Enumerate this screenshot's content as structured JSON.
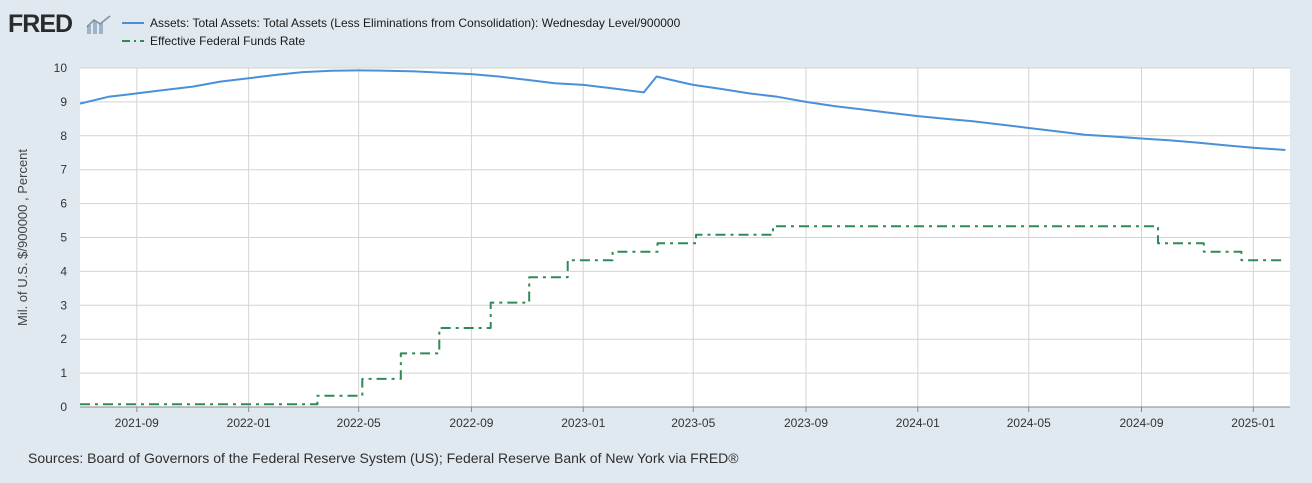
{
  "header": {
    "logo_text": "FRED"
  },
  "legend": [
    {
      "label": "Assets: Total Assets: Total Assets (Less Eliminations from Consolidation): Wednesday Level/900000",
      "color": "#4a90d9",
      "style": "solid"
    },
    {
      "label": "Effective Federal Funds Rate",
      "color": "#2e8b57",
      "style": "dash-dot"
    }
  ],
  "footer": {
    "sources": "Sources: Board of Governors of the Federal Reserve System (US); Federal Reserve Bank of New York via FRED®"
  },
  "chart_data": {
    "type": "line",
    "ylabel": "Mil. of U.S. $/900000 , Percent",
    "ylim": [
      0,
      10
    ],
    "yticks": [
      0,
      1,
      2,
      3,
      4,
      5,
      6,
      7,
      8,
      9,
      10
    ],
    "xlim": [
      "2021-07-01",
      "2025-02-10"
    ],
    "xticks": [
      "2021-09",
      "2022-01",
      "2022-05",
      "2022-09",
      "2023-01",
      "2023-05",
      "2023-09",
      "2024-01",
      "2024-05",
      "2024-09",
      "2025-01"
    ],
    "grid": true,
    "legend_position": "top-left",
    "series": [
      {
        "name": "Assets: Total Assets: Total Assets (Less Eliminations from Consolidation): Wednesday Level/900000",
        "color": "#4a90d9",
        "points": [
          [
            "2021-07-01",
            8.95
          ],
          [
            "2021-08-01",
            9.15
          ],
          [
            "2021-09-01",
            9.25
          ],
          [
            "2021-10-01",
            9.35
          ],
          [
            "2021-11-01",
            9.45
          ],
          [
            "2021-12-01",
            9.6
          ],
          [
            "2022-01-01",
            9.7
          ],
          [
            "2022-02-01",
            9.8
          ],
          [
            "2022-03-01",
            9.88
          ],
          [
            "2022-04-01",
            9.92
          ],
          [
            "2022-05-01",
            9.93
          ],
          [
            "2022-06-01",
            9.92
          ],
          [
            "2022-07-01",
            9.9
          ],
          [
            "2022-08-01",
            9.86
          ],
          [
            "2022-09-01",
            9.82
          ],
          [
            "2022-10-01",
            9.75
          ],
          [
            "2022-11-01",
            9.65
          ],
          [
            "2022-12-01",
            9.55
          ],
          [
            "2023-01-01",
            9.5
          ],
          [
            "2023-02-01",
            9.4
          ],
          [
            "2023-03-08",
            9.28
          ],
          [
            "2023-03-22",
            9.75
          ],
          [
            "2023-04-15",
            9.6
          ],
          [
            "2023-05-01",
            9.5
          ],
          [
            "2023-06-01",
            9.38
          ],
          [
            "2023-07-01",
            9.25
          ],
          [
            "2023-08-01",
            9.15
          ],
          [
            "2023-09-01",
            9.0
          ],
          [
            "2023-10-01",
            8.88
          ],
          [
            "2023-11-01",
            8.78
          ],
          [
            "2023-12-01",
            8.68
          ],
          [
            "2024-01-01",
            8.58
          ],
          [
            "2024-02-01",
            8.5
          ],
          [
            "2024-03-01",
            8.43
          ],
          [
            "2024-04-01",
            8.33
          ],
          [
            "2024-05-01",
            8.23
          ],
          [
            "2024-06-01",
            8.13
          ],
          [
            "2024-07-01",
            8.03
          ],
          [
            "2024-08-01",
            7.98
          ],
          [
            "2024-09-01",
            7.92
          ],
          [
            "2024-10-01",
            7.87
          ],
          [
            "2024-11-01",
            7.8
          ],
          [
            "2024-12-01",
            7.72
          ],
          [
            "2025-01-01",
            7.65
          ],
          [
            "2025-02-05",
            7.58
          ]
        ]
      },
      {
        "name": "Effective Federal Funds Rate",
        "color": "#2e8b57",
        "points": [
          [
            "2021-07-01",
            0.08
          ],
          [
            "2022-03-17",
            0.08
          ],
          [
            "2022-03-17",
            0.33
          ],
          [
            "2022-05-05",
            0.33
          ],
          [
            "2022-05-05",
            0.83
          ],
          [
            "2022-06-16",
            0.83
          ],
          [
            "2022-06-16",
            1.58
          ],
          [
            "2022-07-28",
            1.58
          ],
          [
            "2022-07-28",
            2.33
          ],
          [
            "2022-09-22",
            2.33
          ],
          [
            "2022-09-22",
            3.08
          ],
          [
            "2022-11-03",
            3.08
          ],
          [
            "2022-11-03",
            3.83
          ],
          [
            "2022-12-15",
            3.83
          ],
          [
            "2022-12-15",
            4.33
          ],
          [
            "2023-02-02",
            4.33
          ],
          [
            "2023-02-02",
            4.58
          ],
          [
            "2023-03-23",
            4.58
          ],
          [
            "2023-03-23",
            4.83
          ],
          [
            "2023-05-04",
            4.83
          ],
          [
            "2023-05-04",
            5.08
          ],
          [
            "2023-07-27",
            5.08
          ],
          [
            "2023-07-27",
            5.33
          ],
          [
            "2024-09-19",
            5.33
          ],
          [
            "2024-09-19",
            4.83
          ],
          [
            "2024-11-08",
            4.83
          ],
          [
            "2024-11-08",
            4.58
          ],
          [
            "2024-12-19",
            4.58
          ],
          [
            "2024-12-19",
            4.33
          ],
          [
            "2025-02-05",
            4.33
          ]
        ]
      }
    ]
  }
}
